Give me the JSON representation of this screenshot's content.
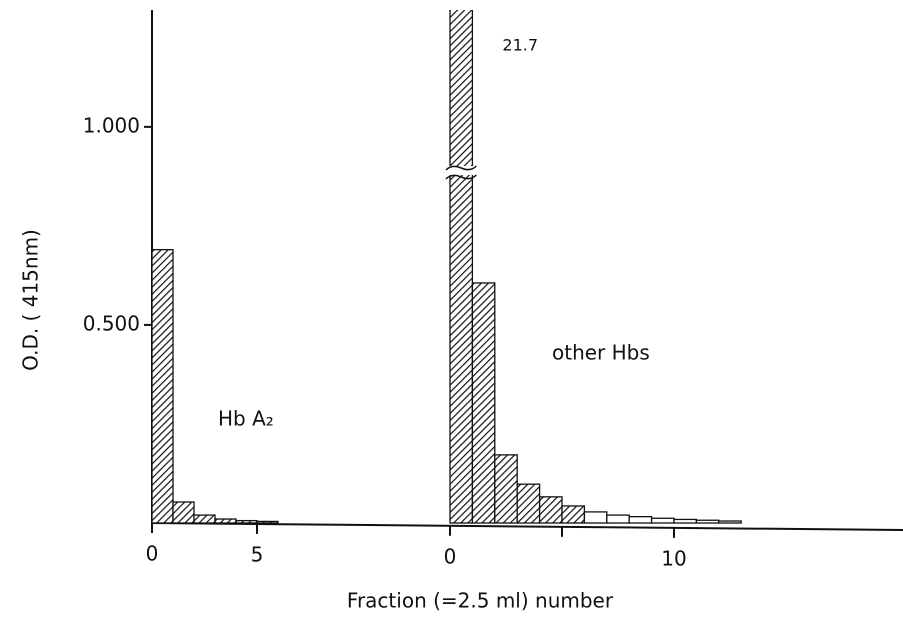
{
  "chart_data": {
    "type": "bar",
    "y_label": "O.D. ( 415nm)",
    "x_label": "Fraction (=2.5 ml) number",
    "ylim": [
      0,
      1.295
    ],
    "yticks": [
      {
        "value": 0.5,
        "label": "0.500"
      },
      {
        "value": 1,
        "label": "1.000"
      }
    ],
    "annotations": [
      "Hb A₂",
      "other Hbs"
    ],
    "series": [
      {
        "values": [
          0.69,
          0.053,
          0.02,
          0.01,
          0.006,
          0.004
        ],
        "patterns": [
          "hatched",
          "hatched",
          "hatched",
          "hatched",
          "hatched",
          "hatched"
        ],
        "xticks": [
          0,
          5
        ]
      },
      {
        "values": [
          21.7,
          0.606,
          0.172,
          0.098,
          0.066,
          0.043,
          0.028,
          0.02,
          0.016,
          0.012,
          0.009,
          0.007,
          0.005
        ],
        "value_labels": [
          "21.7",
          null,
          null,
          null,
          null,
          null,
          null,
          null,
          null,
          null,
          null,
          null,
          null
        ],
        "patterns": [
          "hatched",
          "hatched",
          "hatched",
          "hatched",
          "hatched",
          "hatched",
          "open",
          "open",
          "open",
          "open",
          "open",
          "open",
          "open"
        ],
        "xticks": [
          0,
          10
        ],
        "minor_xticks": [
          5
        ]
      }
    ]
  }
}
